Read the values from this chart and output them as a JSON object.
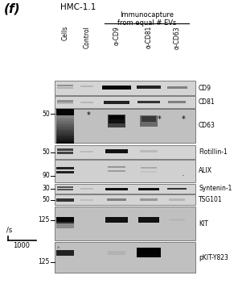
{
  "title_label": "(f)",
  "subtitle": "HMC-1.1",
  "immunocapture_label": "Immunocapture\nfrom equal # EVs",
  "column_labels": [
    "Cells",
    "Control",
    "α-CD9",
    "α-CD81",
    "α-CD63"
  ],
  "row_labels": [
    "CD9",
    "CD81",
    "CD63",
    "Flotillin-1",
    "ALIX",
    "Syntenin-1",
    "TSG101",
    "KIT",
    "pKIT-Y823"
  ],
  "mw_markers": {
    "CD63_top": "50",
    "Flotillin-1": "50",
    "ALIX": "90",
    "Syntenin-1": "30",
    "TSG101": "50",
    "KIT": "125",
    "pKIT-Y823": "125"
  },
  "background_color": "#ffffff",
  "xscale_label": "/s",
  "xscale_value": "1000"
}
